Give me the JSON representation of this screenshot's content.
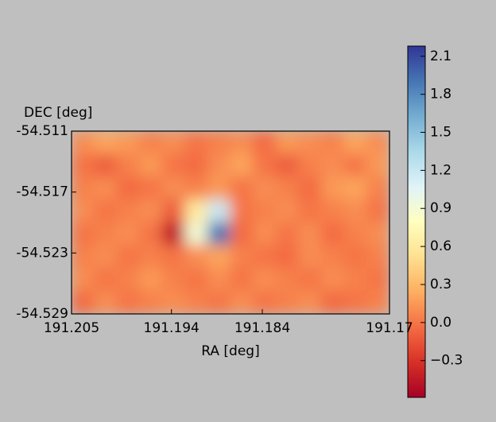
{
  "chart_data": {
    "type": "heatmap",
    "xlabel": "RA [deg]",
    "ylabel": "DEC [deg]",
    "xlim": [
      191.205,
      191.17
    ],
    "xticks": [
      191.205,
      191.194,
      191.184,
      191.17
    ],
    "ylim": [
      -54.529,
      -54.511
    ],
    "yticks": [
      -54.511,
      -54.517,
      -54.523,
      -54.529
    ],
    "z": [
      [
        0.1,
        0.2,
        0.15,
        0.05,
        0.1,
        0.0,
        0.05,
        0.1,
        -0.05,
        0.15,
        0.1,
        0.05,
        0.2,
        0.1
      ],
      [
        0.0,
        -0.1,
        0.05,
        0.15,
        0.0,
        -0.05,
        0.1,
        0.2,
        0.0,
        -0.1,
        0.05,
        0.1,
        0.0,
        0.15
      ],
      [
        0.05,
        0.1,
        -0.05,
        0.0,
        0.1,
        0.05,
        0.15,
        0.0,
        0.1,
        0.05,
        -0.05,
        0.15,
        0.2,
        0.05
      ],
      [
        0.1,
        0.0,
        0.05,
        0.1,
        -0.1,
        0.6,
        1.2,
        0.0,
        0.05,
        0.1,
        0.0,
        0.05,
        0.1,
        0.0
      ],
      [
        0.0,
        0.05,
        0.1,
        0.0,
        -0.45,
        0.9,
        1.9,
        -0.05,
        0.1,
        0.0,
        0.1,
        -0.05,
        0.05,
        0.1
      ],
      [
        0.05,
        0.1,
        0.0,
        0.05,
        0.0,
        0.1,
        0.2,
        0.05,
        0.0,
        -0.05,
        0.1,
        0.05,
        0.0,
        0.05
      ],
      [
        0.1,
        0.0,
        0.05,
        0.15,
        0.05,
        0.0,
        0.1,
        0.0,
        0.1,
        0.05,
        0.0,
        0.1,
        0.05,
        0.0
      ],
      [
        -0.05,
        0.1,
        0.0,
        0.05,
        0.1,
        0.05,
        0.0,
        0.1,
        0.0,
        0.05,
        0.1,
        -0.05,
        0.0,
        0.05
      ]
    ],
    "clim": [
      -0.59,
      2.18
    ],
    "colorbar_ticks": [
      {
        "value": -0.3,
        "label": "−0.3"
      },
      {
        "value": 0,
        "label": "0.0"
      },
      0.3,
      0.6,
      0.9,
      1.2,
      1.5,
      1.8,
      2.1
    ],
    "colormap": [
      "#a50026",
      "#d73027",
      "#f46d43",
      "#fdae61",
      "#fee090",
      "#ffffbf",
      "#e0f3f8",
      "#abd9e9",
      "#74add1",
      "#4575b4",
      "#313695"
    ]
  }
}
